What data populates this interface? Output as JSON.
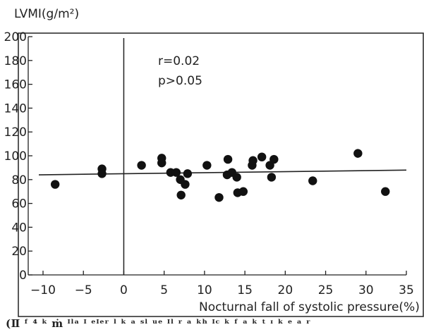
{
  "chart_data": {
    "type": "scatter",
    "title": "",
    "ylabel": "LVMI(g/m²)",
    "xlabel": "Nocturnal fall of systolic pressure(%)",
    "xlim": [
      -10,
      35
    ],
    "ylim": [
      0,
      200
    ],
    "x_ticks": [
      "−10",
      "−5",
      "0",
      "5",
      "10",
      "15",
      "20",
      "25",
      "30",
      "35"
    ],
    "y_ticks": [
      "0",
      "20",
      "40",
      "60",
      "80",
      "100",
      "120",
      "140",
      "160",
      "180",
      "200"
    ],
    "annotations": [
      "r=0.02",
      "p>0.05"
    ],
    "grid": false,
    "reference_line_x": 0,
    "regression": {
      "x": [
        -10,
        35
      ],
      "y": [
        84,
        88
      ]
    },
    "points": [
      {
        "x": -8.5,
        "y": 76
      },
      {
        "x": -2.7,
        "y": 89
      },
      {
        "x": -2.7,
        "y": 85
      },
      {
        "x": 2.2,
        "y": 92
      },
      {
        "x": 4.7,
        "y": 98
      },
      {
        "x": 4.7,
        "y": 94
      },
      {
        "x": 5.8,
        "y": 86
      },
      {
        "x": 6.5,
        "y": 86
      },
      {
        "x": 7.0,
        "y": 80
      },
      {
        "x": 7.1,
        "y": 67
      },
      {
        "x": 7.6,
        "y": 76
      },
      {
        "x": 7.9,
        "y": 85
      },
      {
        "x": 10.3,
        "y": 92
      },
      {
        "x": 11.8,
        "y": 65
      },
      {
        "x": 12.9,
        "y": 97
      },
      {
        "x": 12.8,
        "y": 84
      },
      {
        "x": 13.4,
        "y": 86
      },
      {
        "x": 14.0,
        "y": 82
      },
      {
        "x": 14.1,
        "y": 69
      },
      {
        "x": 14.8,
        "y": 70
      },
      {
        "x": 15.9,
        "y": 92
      },
      {
        "x": 16.0,
        "y": 96
      },
      {
        "x": 17.1,
        "y": 99
      },
      {
        "x": 18.1,
        "y": 92
      },
      {
        "x": 18.6,
        "y": 97
      },
      {
        "x": 18.3,
        "y": 82
      },
      {
        "x": 23.4,
        "y": 79
      },
      {
        "x": 29.0,
        "y": 102
      },
      {
        "x": 32.4,
        "y": 70
      }
    ]
  },
  "caption": "(Ⅱ ᶠ ⁴ ᵏ ṁ ᴵˡᵃ ᴵ ᵉᴵᵉʳ ˡ ᵏ ᵃ ˢˡ ᵘᵉ ᴵˡ ʳ ᵃ ᵏʰ ᴵᶜ ᵏ ᶠ ᵃ ᵏ ᵗ ᶦ ᵏ ᵉ ᵃ ʳ"
}
